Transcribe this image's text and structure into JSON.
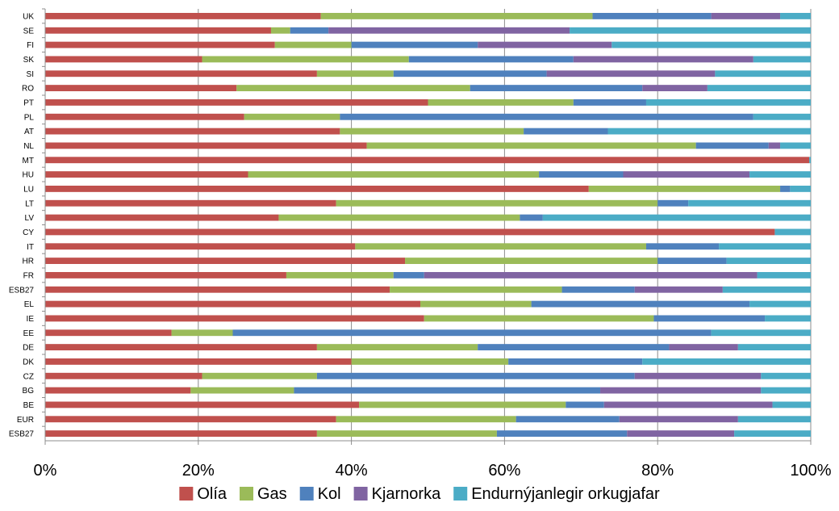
{
  "chart_data": {
    "type": "bar",
    "orientation": "horizontal",
    "stacked": true,
    "categories": [
      "UK",
      "SE",
      "FI",
      "SK",
      "SI",
      "RO",
      "PT",
      "PL",
      "AT",
      "NL",
      "MT",
      "HU",
      "LU",
      "LT",
      "LV",
      "CY",
      "IT",
      "HR",
      "FR",
      "ESB27",
      "EL",
      "IE",
      "EE",
      "DE",
      "DK",
      "CZ",
      "BG",
      "BE",
      "EUR",
      "ESB27"
    ],
    "series": [
      {
        "name": "Olía",
        "color": "#c0504d",
        "values": [
          36,
          29.5,
          30,
          20.5,
          35.5,
          25,
          50,
          26,
          38.5,
          42,
          99.8,
          26.5,
          71,
          38,
          30.5,
          95.3,
          40.5,
          47,
          31.5,
          45,
          49,
          49.5,
          16.5,
          35.5,
          40,
          20.5,
          19,
          41,
          38,
          35.5
        ]
      },
      {
        "name": "Gas",
        "color": "#9bbb59",
        "values": [
          35.5,
          2.5,
          10,
          27,
          10,
          30.5,
          19,
          12.5,
          24,
          43,
          0,
          38,
          25,
          42,
          31.5,
          0,
          38,
          33,
          14,
          22.5,
          14.5,
          30,
          8,
          21,
          20.5,
          15,
          13.5,
          27,
          23.5,
          23.5
        ]
      },
      {
        "name": "Kol",
        "color": "#4f81bd",
        "values": [
          15.5,
          5,
          16.5,
          21.5,
          20,
          22.5,
          9.5,
          54,
          11,
          9.5,
          0,
          11,
          1.3,
          4,
          3,
          0,
          9.5,
          9,
          4,
          9.5,
          28.5,
          14.5,
          62.5,
          25,
          17.5,
          41.5,
          40,
          5,
          13.5,
          17
        ]
      },
      {
        "name": "Kjarnorka",
        "color": "#8064a2",
        "values": [
          9,
          31.5,
          17.5,
          23.5,
          22,
          8.5,
          0,
          0,
          0,
          1.5,
          0,
          16.5,
          0,
          0,
          0,
          0,
          0,
          0,
          43.5,
          11.5,
          0,
          0,
          0,
          9,
          0,
          16.5,
          21,
          22,
          15.5,
          14
        ]
      },
      {
        "name": "Endurnýjanlegir orkugjafar",
        "color": "#4bacc6",
        "values": [
          4,
          31.5,
          26,
          7.5,
          12.5,
          13.5,
          21.5,
          7.5,
          26.5,
          4,
          0.2,
          8,
          2.7,
          16,
          35,
          4.7,
          12,
          11,
          7,
          11.5,
          8,
          6,
          13,
          9.5,
          22,
          6.5,
          6.5,
          5,
          9.5,
          10
        ]
      }
    ],
    "xlim": [
      0,
      100
    ],
    "x_ticks": [
      "0%",
      "20%",
      "40%",
      "60%",
      "80%",
      "100%"
    ],
    "grid": "vertical",
    "legend_position": "bottom"
  }
}
